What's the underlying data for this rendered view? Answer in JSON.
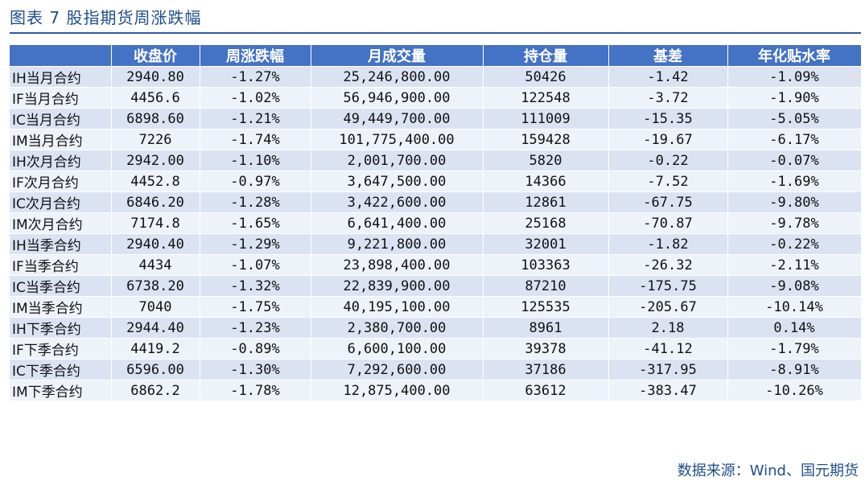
{
  "figure": {
    "title": "图表 7  股指期货周涨跌幅",
    "source": "数据来源：Wind、国元期货"
  },
  "table": {
    "headers": [
      "",
      "收盘价",
      "周涨跌幅",
      "月成交量",
      "持仓量",
      "基差",
      "年化贴水率"
    ],
    "rows": [
      [
        "IH当月合约",
        "2940.80",
        "-1.27%",
        "25,246,800.00",
        "50426",
        "-1.42",
        "-1.09%"
      ],
      [
        "IF当月合约",
        "4456.6",
        "-1.02%",
        "56,946,900.00",
        "122548",
        "-3.72",
        "-1.90%"
      ],
      [
        "IC当月合约",
        "6898.60",
        "-1.21%",
        "49,449,700.00",
        "111009",
        "-15.35",
        "-5.05%"
      ],
      [
        "IM当月合约",
        "7226",
        "-1.74%",
        "101,775,400.00",
        "159428",
        "-19.67",
        "-6.17%"
      ],
      [
        "IH次月合约",
        "2942.00",
        "-1.10%",
        "2,001,700.00",
        "5820",
        "-0.22",
        "-0.07%"
      ],
      [
        "IF次月合约",
        "4452.8",
        "-0.97%",
        "3,647,500.00",
        "14366",
        "-7.52",
        "-1.69%"
      ],
      [
        "IC次月合约",
        "6846.20",
        "-1.28%",
        "3,422,600.00",
        "12861",
        "-67.75",
        "-9.80%"
      ],
      [
        "IM次月合约",
        "7174.8",
        "-1.65%",
        "6,641,400.00",
        "25168",
        "-70.87",
        "-9.78%"
      ],
      [
        "IH当季合约",
        "2940.40",
        "-1.29%",
        "9,221,800.00",
        "32001",
        "-1.82",
        "-0.22%"
      ],
      [
        "IF当季合约",
        "4434",
        "-1.07%",
        "23,898,400.00",
        "103363",
        "-26.32",
        "-2.11%"
      ],
      [
        "IC当季合约",
        "6738.20",
        "-1.32%",
        "22,839,900.00",
        "87210",
        "-175.75",
        "-9.08%"
      ],
      [
        "IM当季合约",
        "7040",
        "-1.75%",
        "40,195,100.00",
        "125535",
        "-205.67",
        "-10.14%"
      ],
      [
        "IH下季合约",
        "2944.40",
        "-1.23%",
        "2,380,700.00",
        "8961",
        "2.18",
        "0.14%"
      ],
      [
        "IF下季合约",
        "4419.2",
        "-0.89%",
        "6,600,100.00",
        "39378",
        "-41.12",
        "-1.79%"
      ],
      [
        "IC下季合约",
        "6596.00",
        "-1.30%",
        "7,292,600.00",
        "37186",
        "-317.95",
        "-8.91%"
      ],
      [
        "IM下季合约",
        "6862.2",
        "-1.78%",
        "12,875,400.00",
        "63612",
        "-383.47",
        "-10.26%"
      ]
    ]
  },
  "colors": {
    "header_bg": "#4472c4",
    "row_odd_bg": "#dbe3f3",
    "row_even_bg": "#eef2f9",
    "title_color": "#1f4e8c"
  }
}
